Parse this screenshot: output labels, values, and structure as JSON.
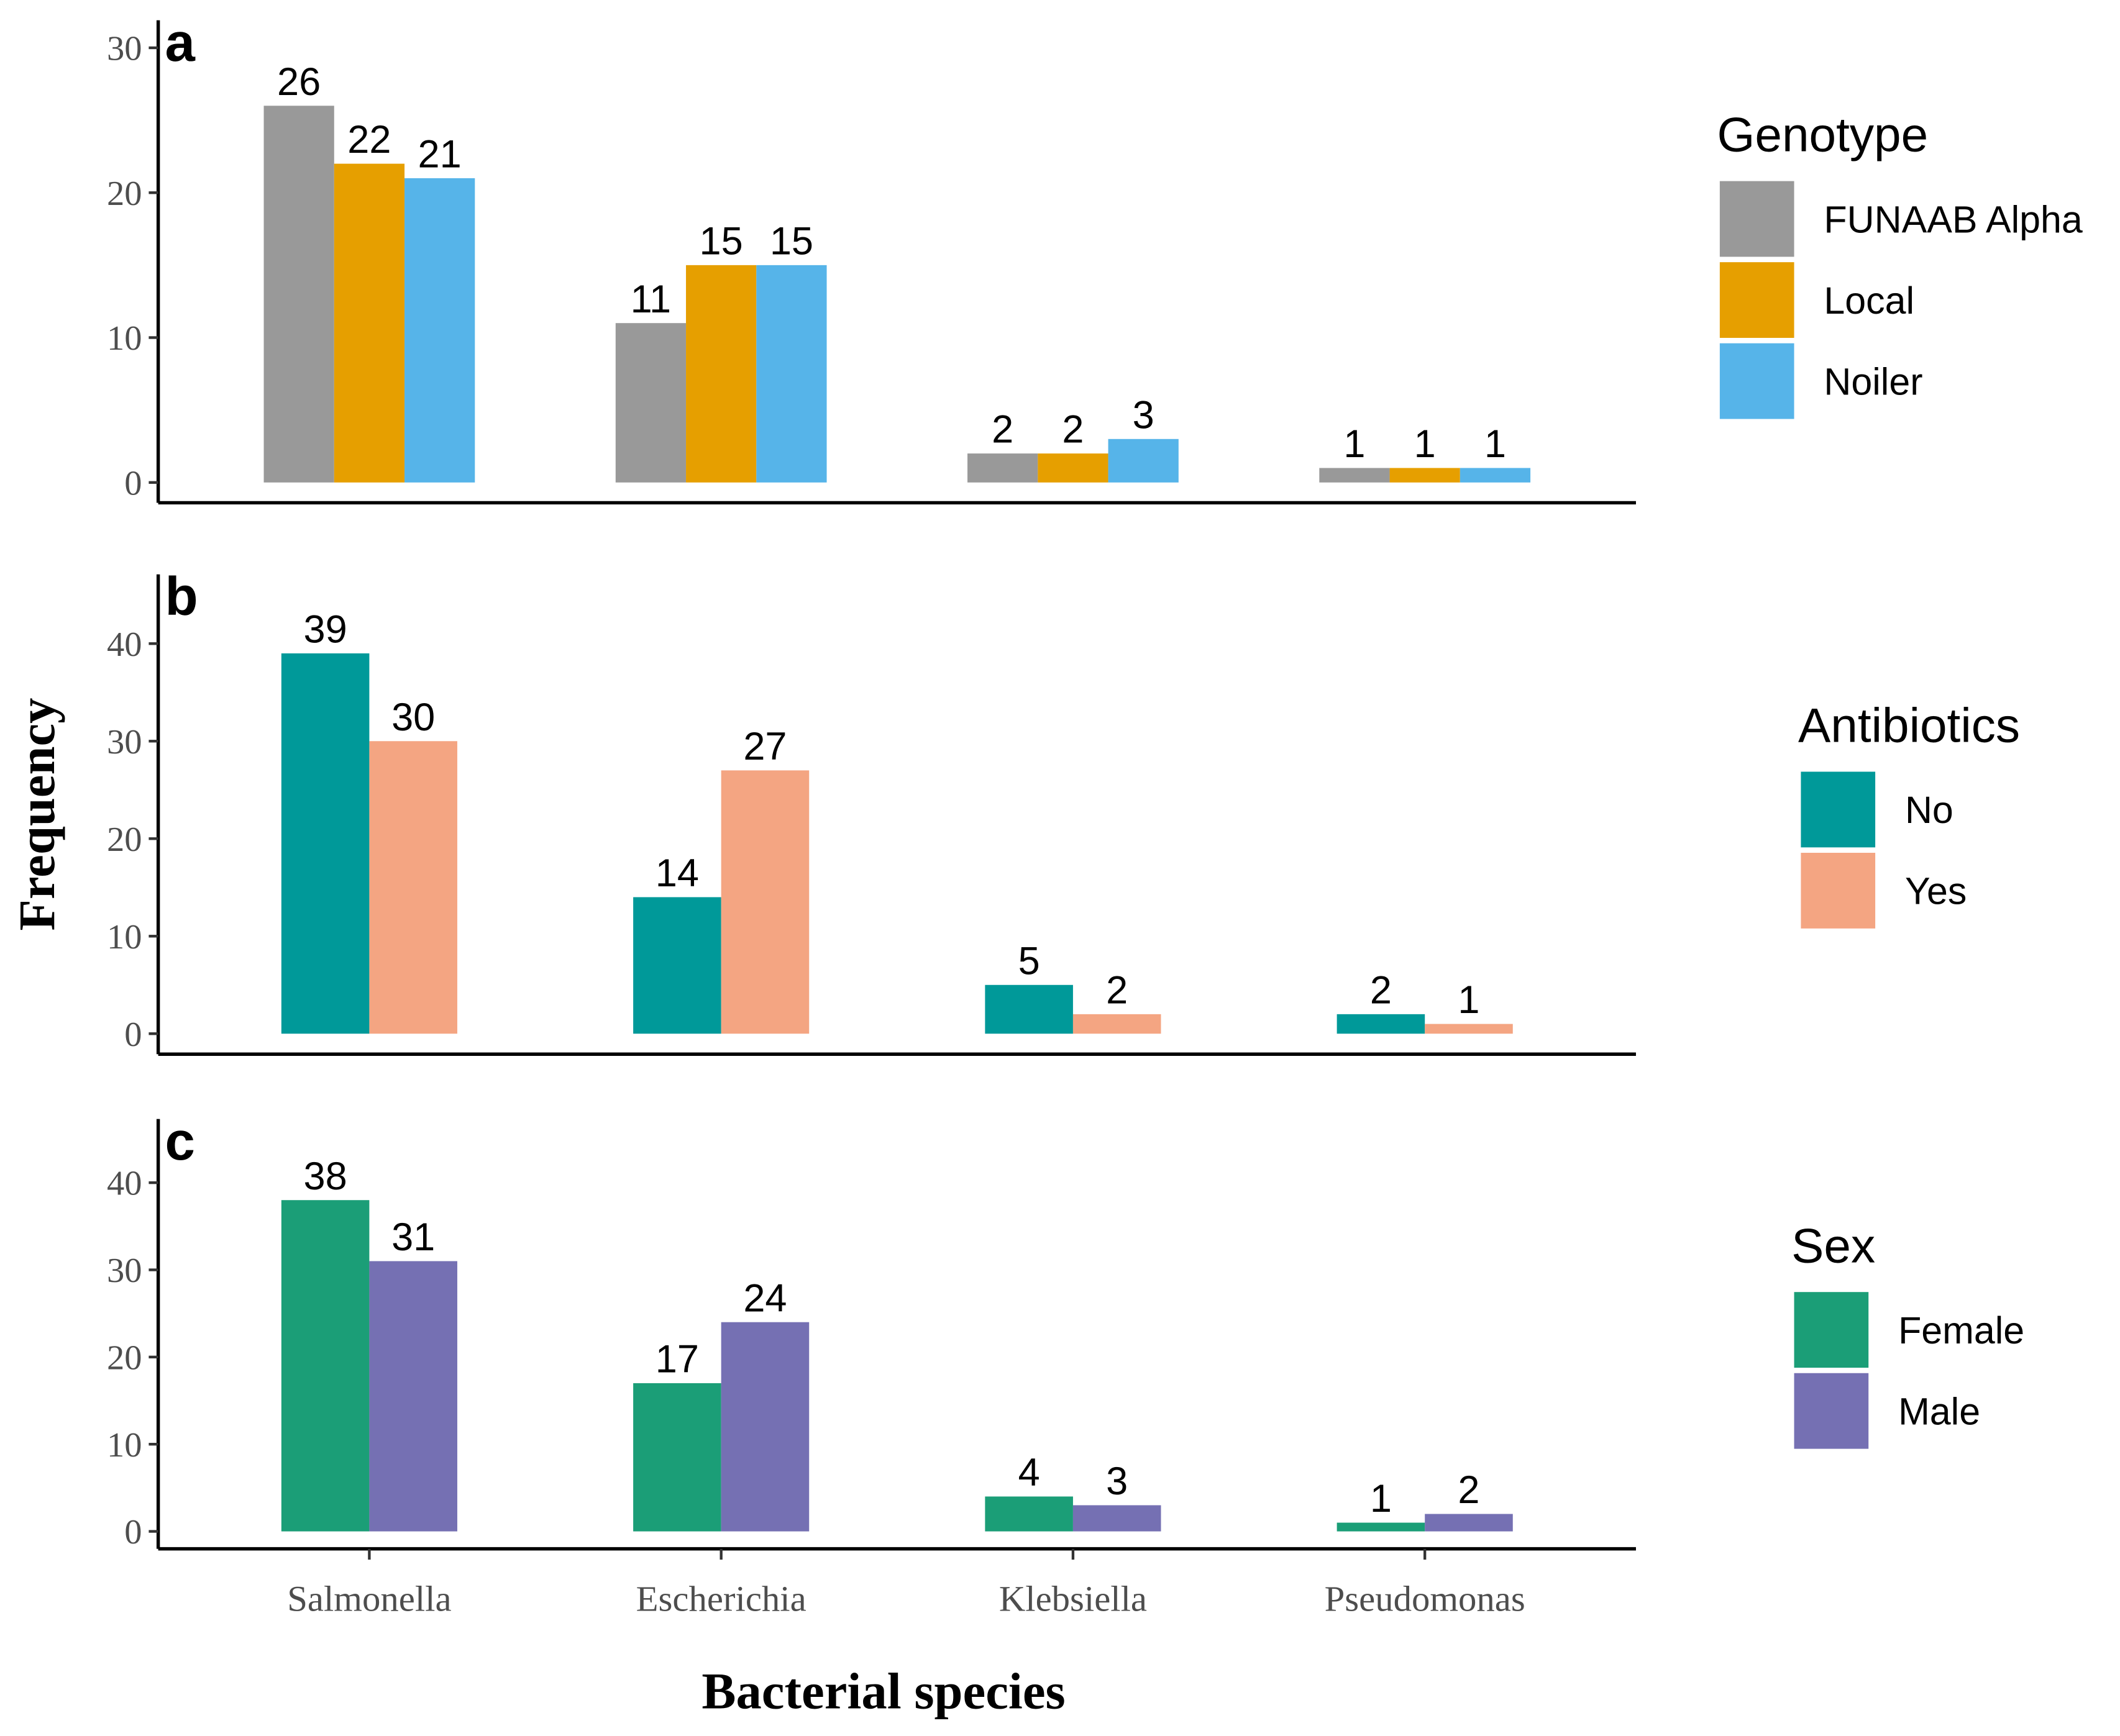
{
  "chart_data": [
    {
      "type": "bar",
      "title": "a",
      "categories": [
        "Salmonella",
        "Escherichia",
        "Klebsiella",
        "Pseudomonas"
      ],
      "series": [
        {
          "name": "FUNAAB Alpha",
          "color": "#999999",
          "values": [
            26,
            11,
            2,
            1
          ]
        },
        {
          "name": "Local",
          "color": "#e69f00",
          "values": [
            22,
            15,
            2,
            1
          ]
        },
        {
          "name": "Noiler",
          "color": "#56b4e9",
          "values": [
            21,
            15,
            3,
            1
          ]
        }
      ],
      "legend_title": "Genotype",
      "legend": "right",
      "ylim": [
        -1.4,
        31.9
      ],
      "yticks": [
        0,
        10,
        20,
        30
      ]
    },
    {
      "type": "bar",
      "title": "b",
      "y_label": "Frequency",
      "categories": [
        "Salmonella",
        "Escherichia",
        "Klebsiella",
        "Pseudomonas"
      ],
      "series": [
        {
          "name": "No",
          "color": "#009999",
          "values": [
            39,
            14,
            5,
            2
          ]
        },
        {
          "name": "Yes",
          "color": "#f4a582",
          "values": [
            30,
            27,
            2,
            1
          ]
        }
      ],
      "legend_title": "Antibiotics",
      "legend": "right",
      "ylim": [
        -2.1,
        47.1
      ],
      "yticks": [
        0,
        10,
        20,
        30,
        40
      ]
    },
    {
      "type": "bar",
      "title": "c",
      "x_label": "Bacterial species",
      "categories": [
        "Salmonella",
        "Escherichia",
        "Klebsiella",
        "Pseudomonas"
      ],
      "series": [
        {
          "name": "Female",
          "color": "#1b9e77",
          "values": [
            38,
            17,
            4,
            1
          ]
        },
        {
          "name": "Male",
          "color": "#7570b3",
          "values": [
            31,
            24,
            3,
            2
          ]
        }
      ],
      "legend_title": "Sex",
      "legend": "right",
      "ylim": [
        -2.0,
        47.3
      ],
      "yticks": [
        0,
        10,
        20,
        30,
        40
      ]
    }
  ]
}
